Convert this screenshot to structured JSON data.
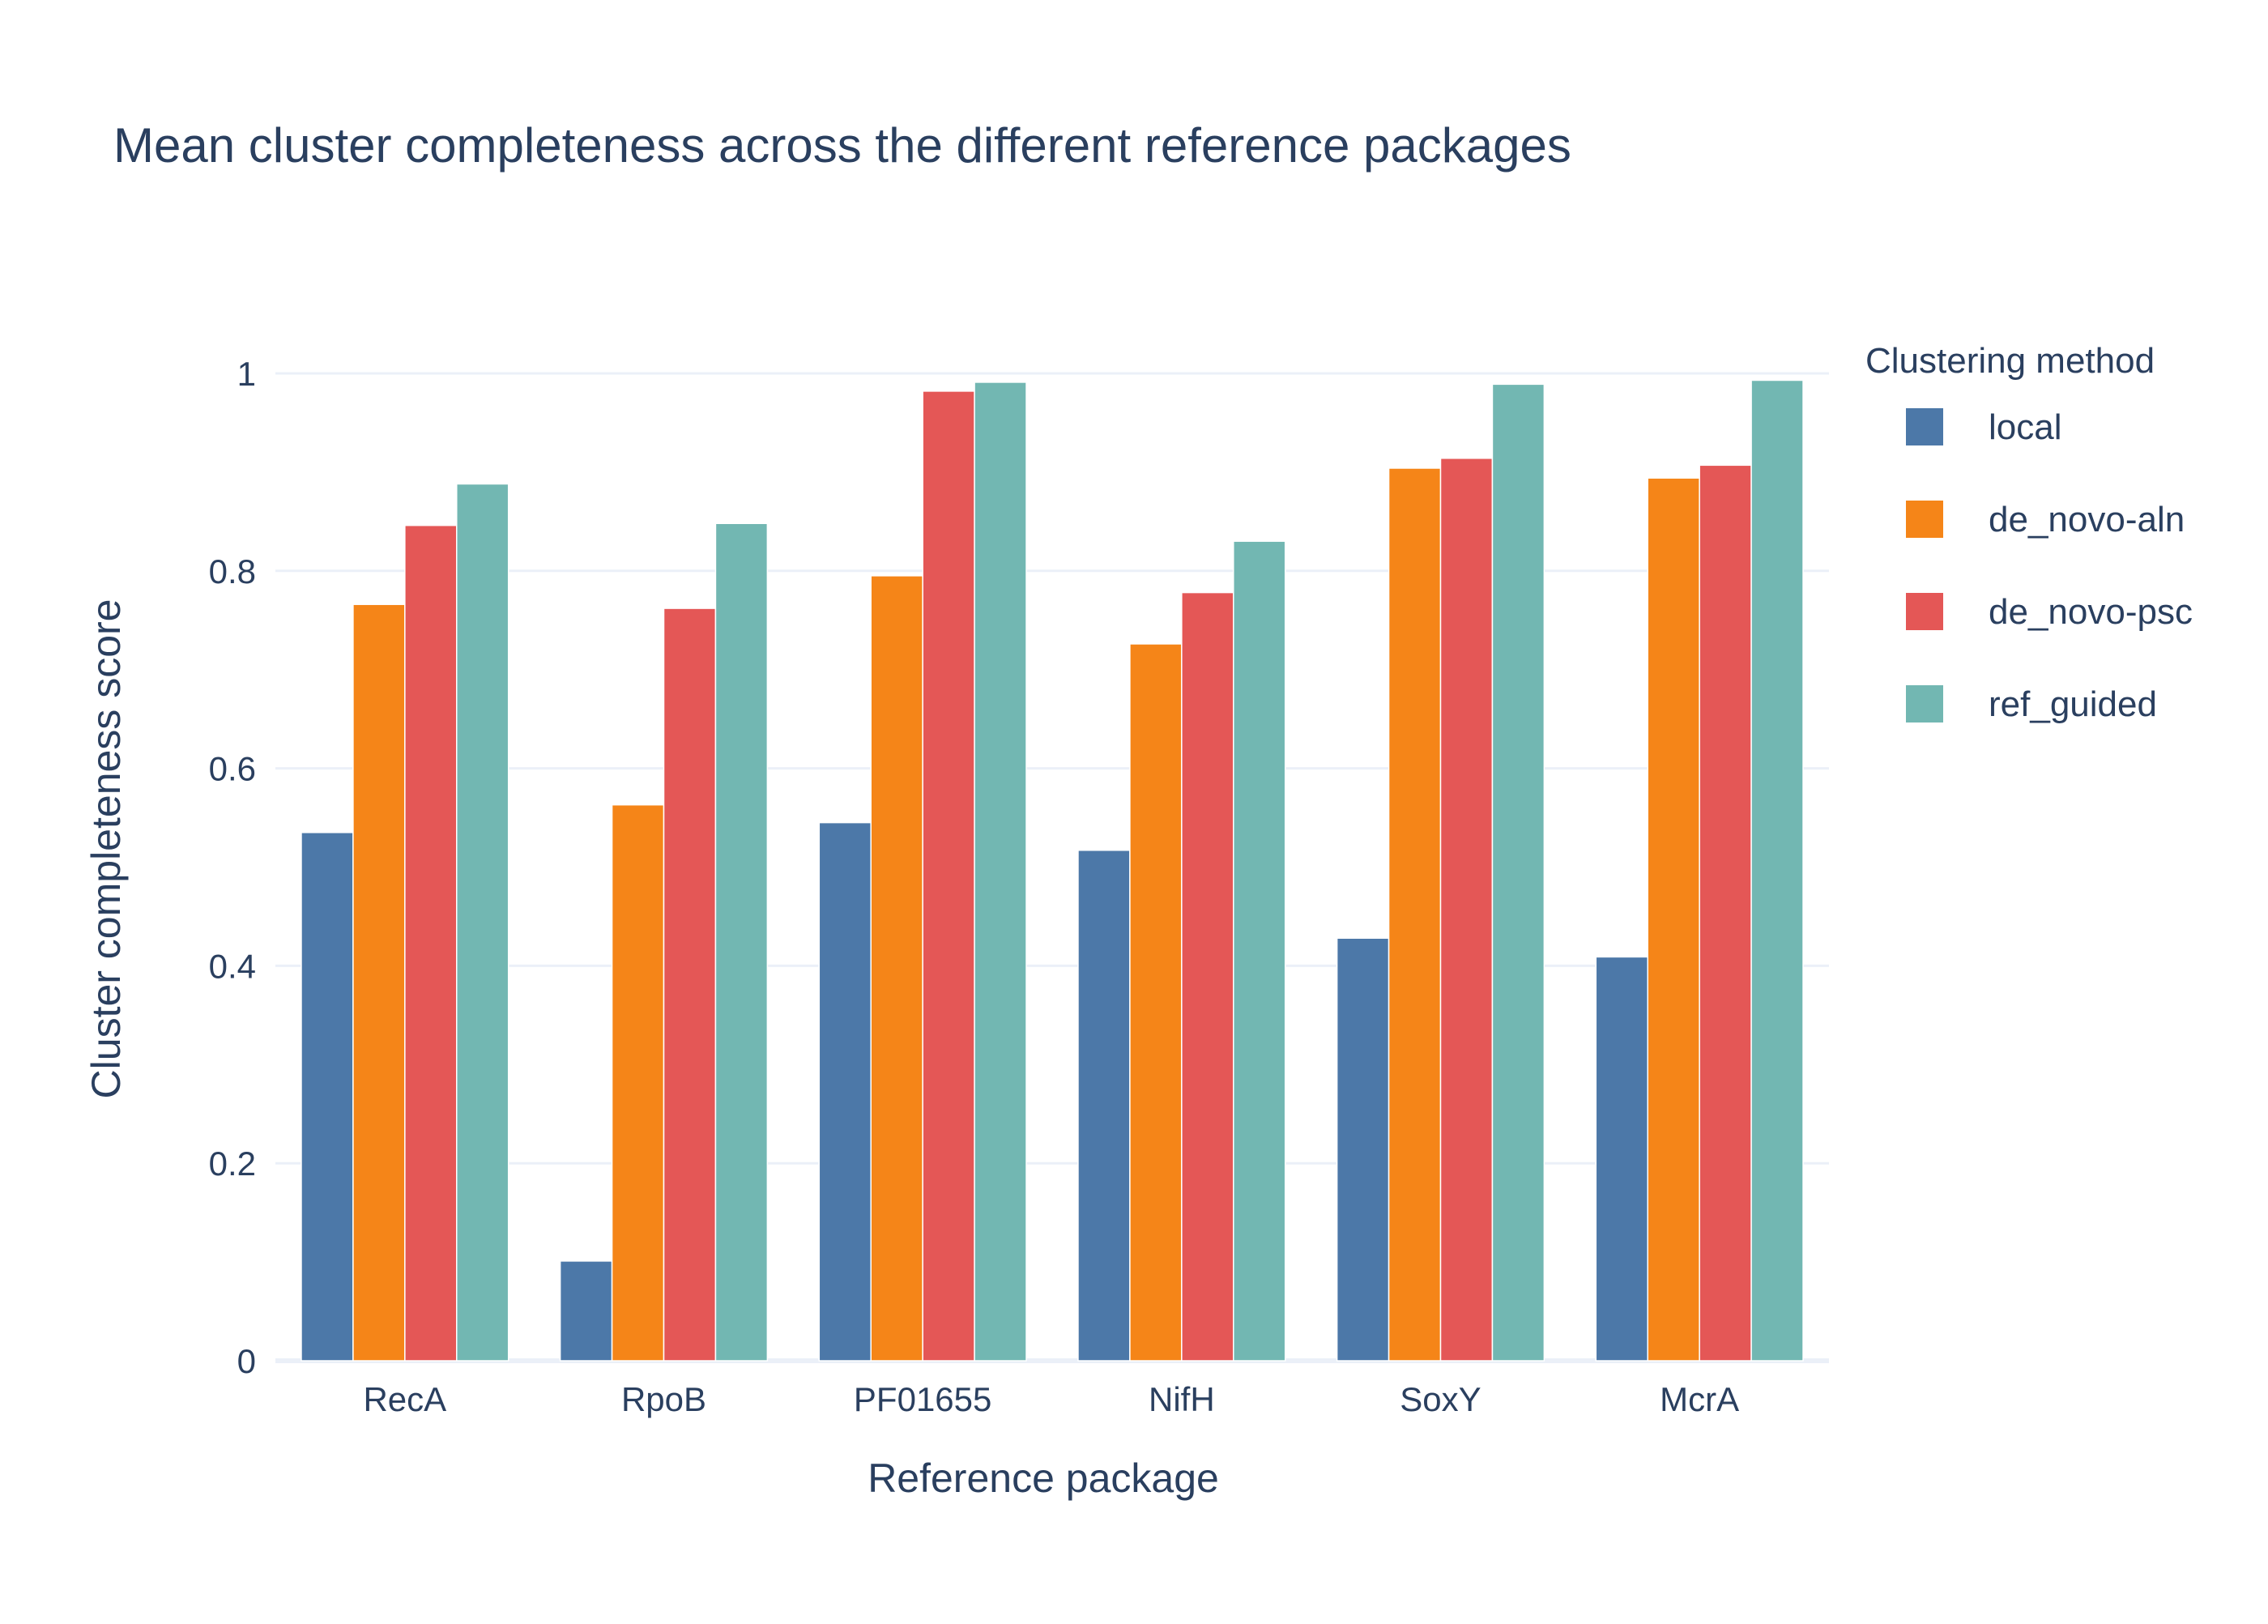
{
  "chart_data": {
    "type": "bar",
    "title": "Mean cluster completeness across the different reference packages",
    "xlabel": "Reference package",
    "ylabel": "Cluster completeness score",
    "categories": [
      "RecA",
      "RpoB",
      "PF01655",
      "NifH",
      "SoxY",
      "McrA"
    ],
    "ylim": [
      0,
      1.05
    ],
    "yticks": [
      0,
      0.2,
      0.4,
      0.6,
      0.8,
      1
    ],
    "ytick_labels": [
      "0",
      "0.2",
      "0.4",
      "0.6",
      "0.8",
      "1"
    ],
    "grid": true,
    "legend": {
      "title": "Clustering method",
      "placement": "top-right"
    },
    "series": [
      {
        "name": "local",
        "color": "#4c78a8",
        "values": [
          0.535,
          0.101,
          0.545,
          0.517,
          0.428,
          0.409
        ]
      },
      {
        "name": "de_novo-aln",
        "color": "#f58518",
        "values": [
          0.766,
          0.563,
          0.795,
          0.726,
          0.904,
          0.894
        ]
      },
      {
        "name": "de_novo-psc",
        "color": "#e45756",
        "values": [
          0.846,
          0.762,
          0.982,
          0.778,
          0.914,
          0.907
        ]
      },
      {
        "name": "ref_guided",
        "color": "#72b7b2",
        "values": [
          0.888,
          0.848,
          0.991,
          0.83,
          0.989,
          0.993
        ]
      }
    ]
  }
}
